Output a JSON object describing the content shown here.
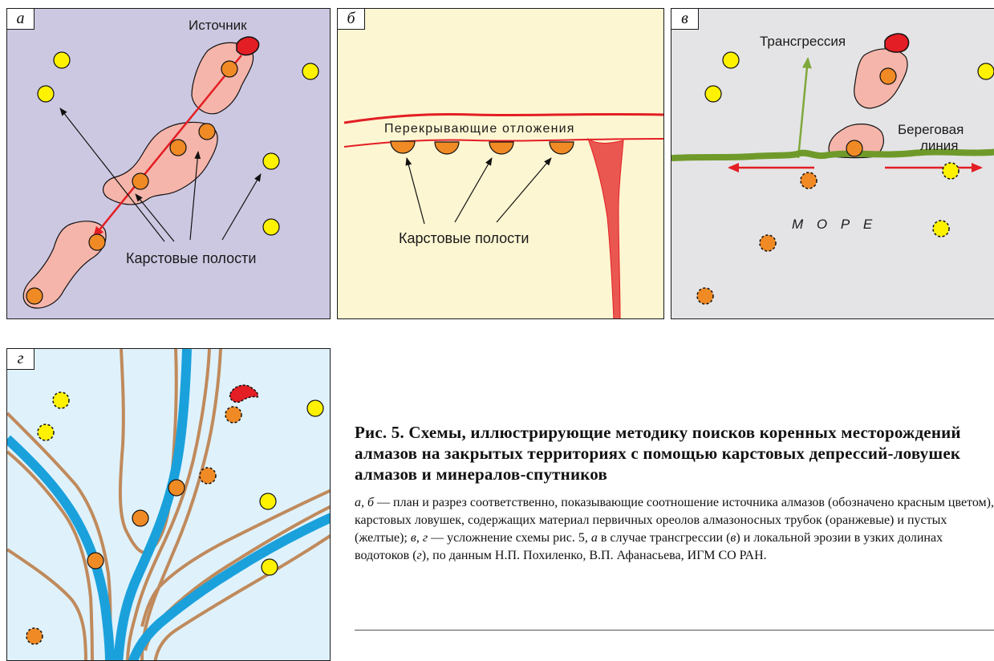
{
  "colors": {
    "panel_a_bg": "#cdc8e2",
    "panel_b_bg": "#fdf6d2",
    "panel_c_bg": "#e4e4e6",
    "panel_d_bg": "#dff2fc",
    "outcrop_fill": "#f5b5aa",
    "source_red": "#e31e24",
    "orange_dot": "#f08a25",
    "yellow_dot": "#fff200",
    "river_blue": "#1aa1dc",
    "valley_brown": "#c08a5c",
    "shore_green": "#6f9a2a",
    "transgression_green": "#7fa83a"
  },
  "panels": {
    "a": {
      "tag": "а",
      "source_label": "Источник",
      "karst_label": "Карстовые полости"
    },
    "b": {
      "tag": "б",
      "cover_label": "Перекрывающие отложения",
      "karst_label": "Карстовые полости"
    },
    "c": {
      "tag": "в",
      "transgression_label": "Трансгрессия",
      "shore_label_1": "Береговая",
      "shore_label_2": "линия",
      "sea_label": "М О Р Е"
    },
    "d": {
      "tag": "г"
    }
  },
  "caption": {
    "title": "Рис. 5. Схемы, иллюстрирующие методику поисков коренных месторождений алмазов на закрытых территориях с помощью карстовых депрессий-ловушек алмазов и минералов-спутников",
    "body_parts": [
      {
        "italic": true,
        "text": "а"
      },
      {
        "italic": false,
        "text": ", "
      },
      {
        "italic": true,
        "text": "б"
      },
      {
        "italic": false,
        "text": " — план и разрез соответственно, показывающие соотношение источника алмазов (обозначено красным цветом), карстовых ловушек, содержащих материал первичных ореолов алмазоносных трубок (оранжевые) и пустых (желтые); "
      },
      {
        "italic": true,
        "text": "в"
      },
      {
        "italic": false,
        "text": ", "
      },
      {
        "italic": true,
        "text": "г"
      },
      {
        "italic": false,
        "text": " — усложнение схемы рис. 5, "
      },
      {
        "italic": true,
        "text": "а"
      },
      {
        "italic": false,
        "text": " в случае трансгрессии ("
      },
      {
        "italic": true,
        "text": "в"
      },
      {
        "italic": false,
        "text": ") и локальной эрозии в узких долинах водотоков ("
      },
      {
        "italic": true,
        "text": "г"
      },
      {
        "italic": false,
        "text": "), по данным Н.П. Похиленко, В.П. Афанасьева, ИГМ СО РАН."
      }
    ]
  }
}
